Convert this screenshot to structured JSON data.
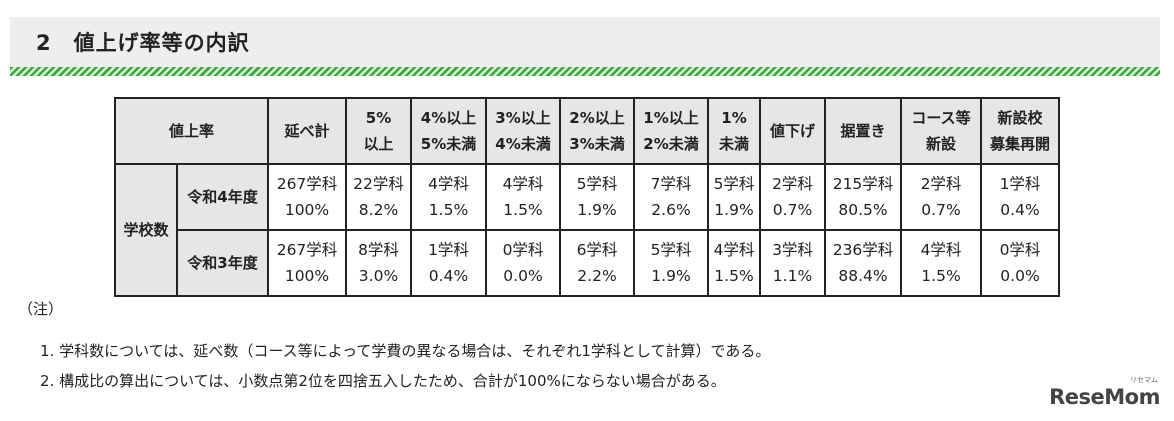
{
  "heading": {
    "number": "2",
    "title": "値上げ率等の内訳"
  },
  "table": {
    "corner_label": "値上率",
    "columns": [
      [
        "延べ計"
      ],
      [
        "5%",
        "以上"
      ],
      [
        "4%以上",
        "5%未満"
      ],
      [
        "3%以上",
        "4%未満"
      ],
      [
        "2%以上",
        "3%未満"
      ],
      [
        "1%以上",
        "2%未満"
      ],
      [
        "1%",
        "未満"
      ],
      [
        "値下げ"
      ],
      [
        "据置き"
      ],
      [
        "コース等",
        "新設"
      ],
      [
        "新設校",
        "募集再開"
      ]
    ],
    "group_label": "学校数",
    "rows": [
      {
        "label": "令和4年度",
        "cells": [
          [
            "267学科",
            "100%"
          ],
          [
            "22学科",
            "8.2%"
          ],
          [
            "4学科",
            "1.5%"
          ],
          [
            "4学科",
            "1.5%"
          ],
          [
            "5学科",
            "1.9%"
          ],
          [
            "7学科",
            "2.6%"
          ],
          [
            "5学科",
            "1.9%"
          ],
          [
            "2学科",
            "0.7%"
          ],
          [
            "215学科",
            "80.5%"
          ],
          [
            "2学科",
            "0.7%"
          ],
          [
            "1学科",
            "0.4%"
          ]
        ]
      },
      {
        "label": "令和3年度",
        "cells": [
          [
            "267学科",
            "100%"
          ],
          [
            "8学科",
            "3.0%"
          ],
          [
            "1学科",
            "0.4%"
          ],
          [
            "0学科",
            "0.0%"
          ],
          [
            "6学科",
            "2.2%"
          ],
          [
            "5学科",
            "1.9%"
          ],
          [
            "4学科",
            "1.5%"
          ],
          [
            "3学科",
            "1.1%"
          ],
          [
            "236学科",
            "88.4%"
          ],
          [
            "4学科",
            "1.5%"
          ],
          [
            "0学科",
            "0.0%"
          ]
        ]
      }
    ]
  },
  "notes": {
    "head": "（注）",
    "items": [
      "1. 学科数については、延べ数（コース等によって学費の異なる場合は、それぞれ1学科として計算）である。",
      "2. 構成比の算出については、小数点第2位を四捨五入したため、合計が100%にならない場合がある。"
    ]
  },
  "logo": {
    "text": "ReseMom",
    "sub": "リセマム"
  }
}
